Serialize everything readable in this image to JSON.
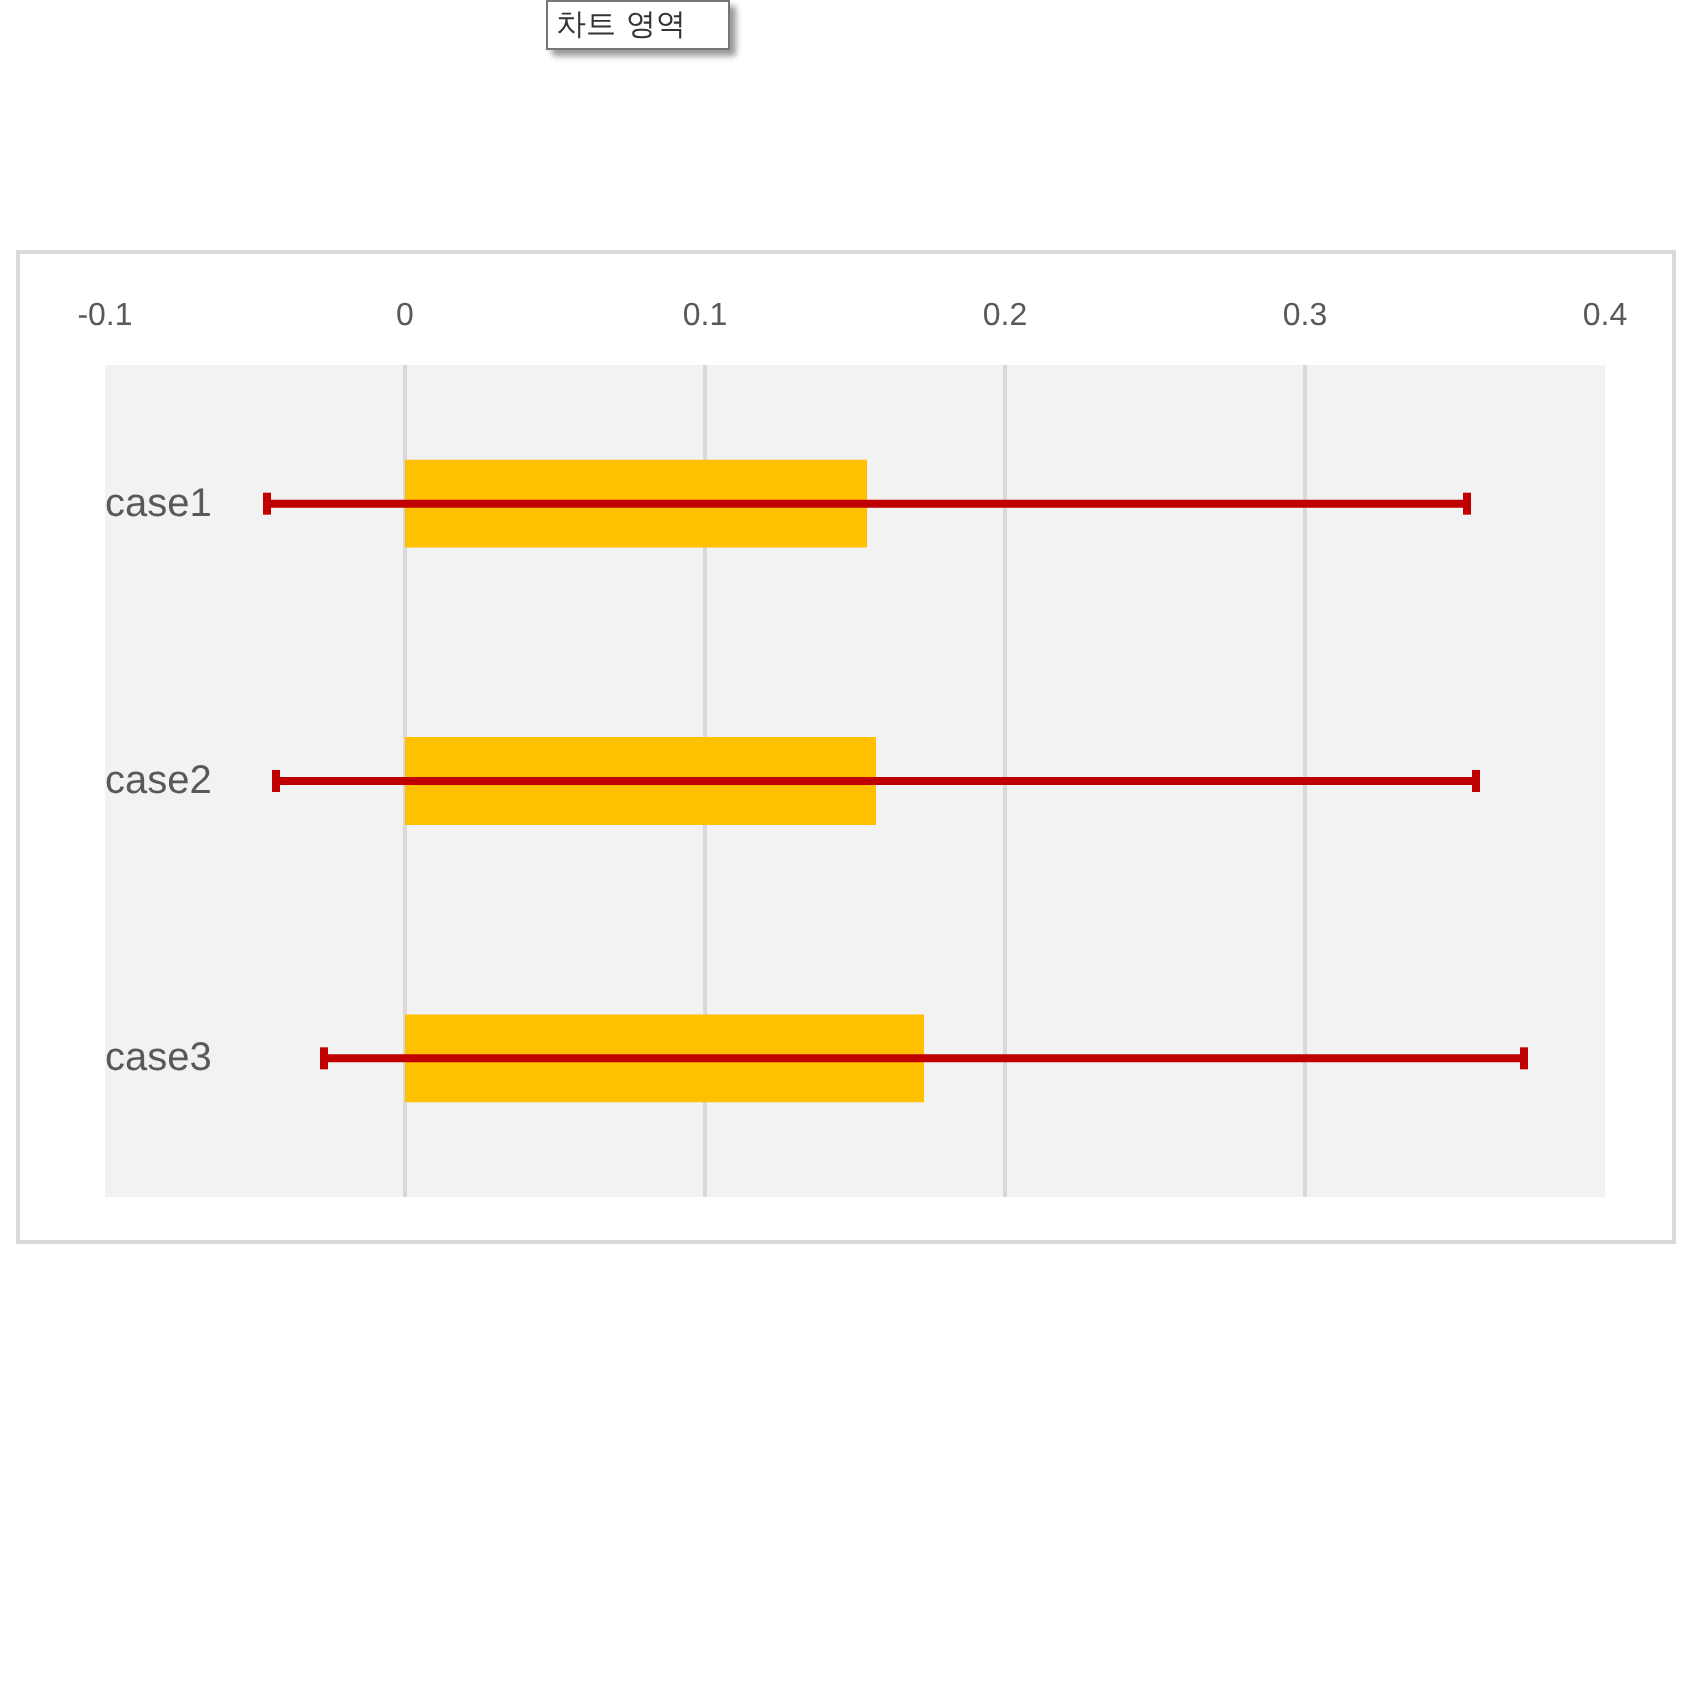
{
  "chart_data": {
    "type": "bar",
    "orientation": "horizontal",
    "categories": [
      "case1",
      "case2",
      "case3"
    ],
    "values": [
      0.154,
      0.157,
      0.173
    ],
    "errors": [
      0.2,
      0.2,
      0.2
    ],
    "color": "#ffc000",
    "xlim": [
      -0.1,
      0.4
    ],
    "xticks": [
      -0.1,
      0,
      0.1,
      0.2,
      0.3,
      0.4
    ],
    "grid": "x",
    "annotations": [
      "차트 영역"
    ]
  }
}
